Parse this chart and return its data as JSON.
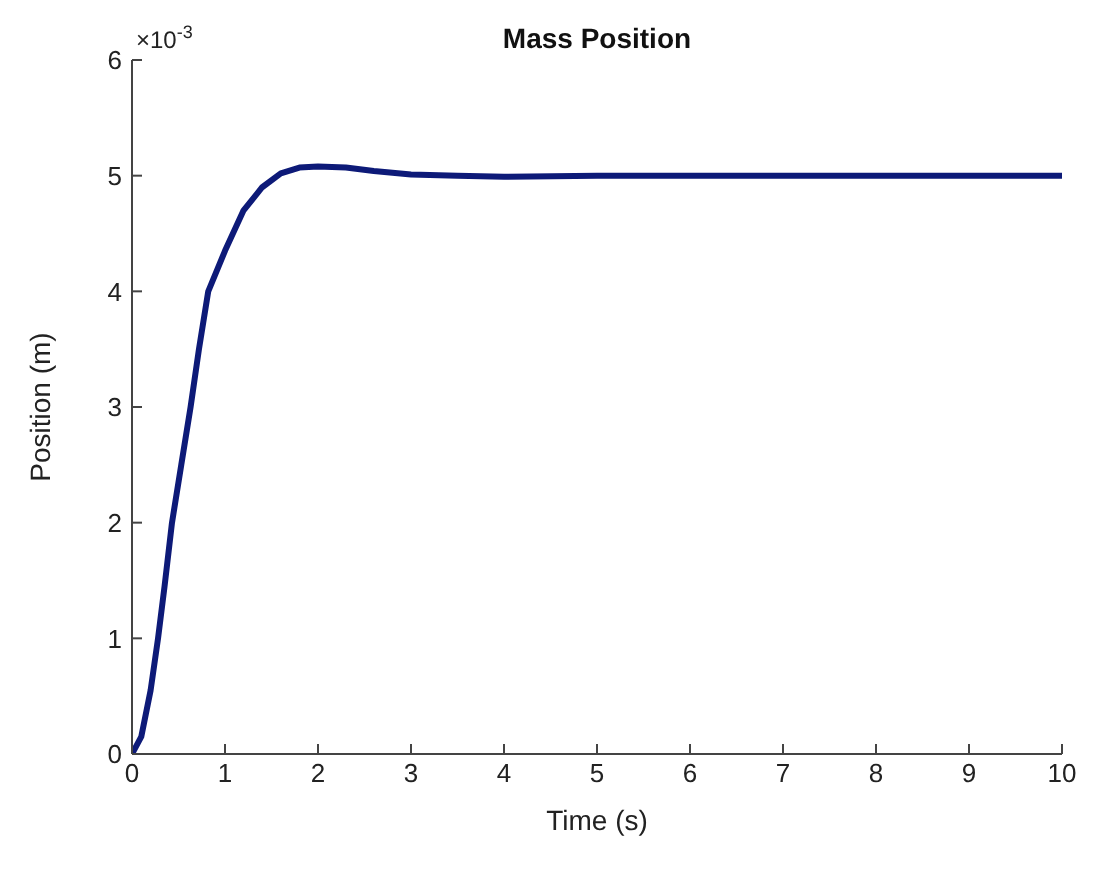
{
  "chart_data": {
    "type": "line",
    "title": "Mass Position",
    "xlabel": "Time (s)",
    "ylabel": "Position (m)",
    "annotations": [
      "×10$^{-3}$"
    ],
    "x": [
      0,
      0.1,
      0.2,
      0.28,
      0.35,
      0.43,
      0.53,
      0.63,
      0.72,
      0.82,
      1.0,
      1.2,
      1.4,
      1.6,
      1.8,
      2.0,
      2.3,
      2.6,
      3.0,
      3.5,
      4.0,
      5.0,
      6.0,
      8.0,
      10.0
    ],
    "series": [
      {
        "color": "#0d1a78",
        "values": [
          0,
          0.15,
          0.55,
          1.0,
          1.45,
          2.0,
          2.5,
          3.0,
          3.5,
          4.0,
          4.35,
          4.7,
          4.9,
          5.02,
          5.07,
          5.08,
          5.07,
          5.04,
          5.01,
          5.0,
          4.99,
          5.0,
          5.0,
          5.0,
          5.0
        ]
      }
    ],
    "xlim": [
      0,
      10
    ],
    "xticks": [
      0,
      1,
      2,
      3,
      4,
      5,
      6,
      7,
      8,
      9,
      10
    ],
    "ylim": [
      0,
      6
    ],
    "yticks": [
      0,
      1,
      2,
      3,
      4,
      5,
      6
    ],
    "grid": false,
    "legend": false,
    "marker": "none",
    "line_style": "solid"
  }
}
